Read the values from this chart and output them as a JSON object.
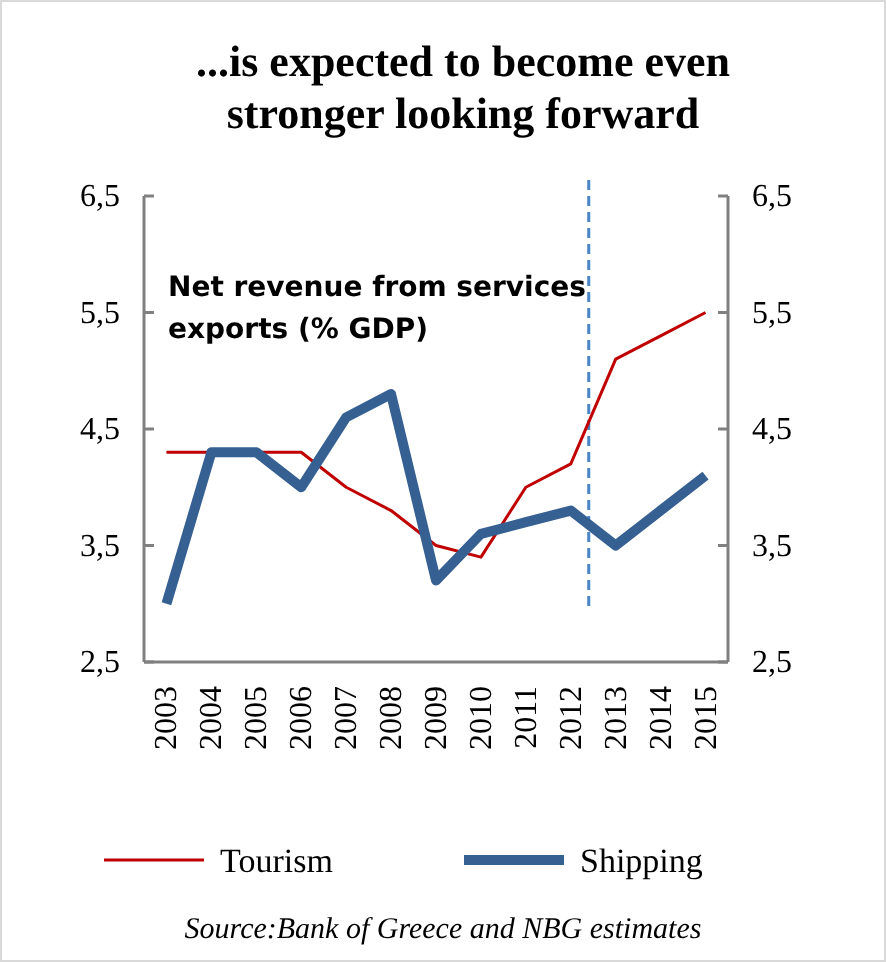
{
  "chart_data": {
    "type": "line",
    "title": "...is expected  to become even\nstronger looking forward",
    "x": [
      2003,
      2004,
      2005,
      2006,
      2007,
      2008,
      2009,
      2010,
      2011,
      2012,
      2013,
      2014,
      2015
    ],
    "series": [
      {
        "name": "Tourism",
        "color": "#c00000",
        "values": [
          4.3,
          4.3,
          4.3,
          4.3,
          4.0,
          3.8,
          3.5,
          3.4,
          4.0,
          4.2,
          5.1,
          5.3,
          5.5
        ]
      },
      {
        "name": "Shipping",
        "color": "#376092",
        "values": [
          3.0,
          4.3,
          4.3,
          4.0,
          4.6,
          4.8,
          3.2,
          3.6,
          3.7,
          3.8,
          3.5,
          3.8,
          4.1
        ]
      }
    ],
    "xlim": [
      2002.5,
      2015.5
    ],
    "xticks": [
      2003,
      2004,
      2005,
      2006,
      2007,
      2008,
      2009,
      2010,
      2011,
      2012,
      2013,
      2014,
      2015
    ],
    "ylim": [
      2.5,
      6.5
    ],
    "yticks": [
      {
        "value": 2.5,
        "label": "2,5"
      },
      {
        "value": 3.5,
        "label": "3,5"
      },
      {
        "value": 4.5,
        "label": "4,5"
      },
      {
        "value": 5.5,
        "label": "5,5"
      },
      {
        "value": 6.5,
        "label": "6,5"
      }
    ],
    "y2lim": [
      2.5,
      6.5
    ],
    "y2ticks": [
      {
        "value": 2.5,
        "label": "2,5"
      },
      {
        "value": 3.5,
        "label": "3,5"
      },
      {
        "value": 4.5,
        "label": "4,5"
      },
      {
        "value": 5.5,
        "label": "5,5"
      },
      {
        "value": 6.5,
        "label": "6,5"
      }
    ],
    "ref_lines": [
      {
        "axis": "x",
        "value": 2012.4,
        "color": "#4a86c8",
        "line_style": "dashed"
      }
    ],
    "annotations": [
      "Net  revenue from services\nexports (% GDP)",
      "Source:Bank of Greece and NBG estimates"
    ],
    "legend": "bottom",
    "grid": false
  }
}
